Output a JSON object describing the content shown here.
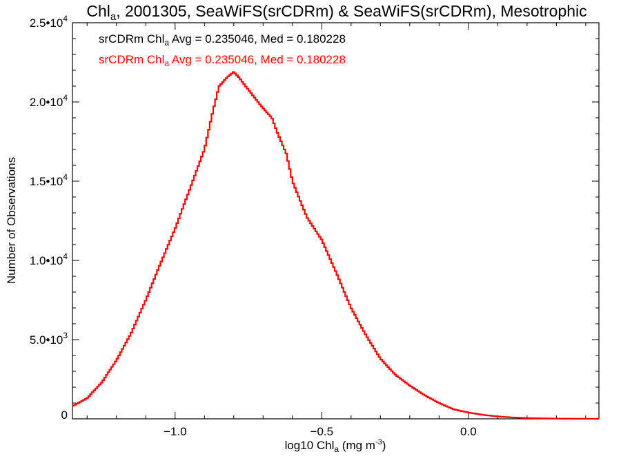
{
  "chart_data": {
    "type": "step",
    "title": {
      "prefix": "Chl",
      "sub": "a",
      "suffix": ", 2001305, SeaWiFS(srCDRm) & SeaWiFS(srCDRm), Mesotrophic"
    },
    "xlabel": {
      "prefix": "log10 Chl",
      "sub": "a",
      "suffix": " (mg m",
      "sup": "-3",
      "end": ")"
    },
    "ylabel": "Number of Observations",
    "xlim": [
      -1.35,
      0.445
    ],
    "ylim": [
      0,
      25000
    ],
    "x_ticks": [
      {
        "value": -1.0,
        "label": "−1.0"
      },
      {
        "value": -0.5,
        "label": "−0.5"
      },
      {
        "value": 0.0,
        "label": "0.0"
      }
    ],
    "y_ticks": [
      {
        "value": 0,
        "mant": "0",
        "exp": ""
      },
      {
        "value": 5000,
        "mant": "5.0•10",
        "exp": "3"
      },
      {
        "value": 10000,
        "mant": "1.0•10",
        "exp": "4"
      },
      {
        "value": 15000,
        "mant": "1.5•10",
        "exp": "4"
      },
      {
        "value": 20000,
        "mant": "2.0•10",
        "exp": "4"
      },
      {
        "value": 25000,
        "mant": "2.5•10",
        "exp": "4"
      }
    ],
    "legend": [
      {
        "prefix": "srCDRm Chl",
        "sub": "a",
        "suffix": " Avg = 0.235046, Med = 0.180228",
        "color": "#000000"
      },
      {
        "prefix": "srCDRm Chl",
        "sub": "a",
        "suffix": " Avg = 0.235046, Med = 0.180228",
        "color": "#ff0000"
      }
    ],
    "legend_position": "top-left",
    "bin_width": 0.006,
    "series": [
      {
        "color": "#000000",
        "x": [
          -1.35,
          -1.3,
          -1.25,
          -1.2,
          -1.15,
          -1.1,
          -1.05,
          -1.0,
          -0.95,
          -0.9,
          -0.87,
          -0.85,
          -0.82,
          -0.8,
          -0.78,
          -0.76,
          -0.73,
          -0.7,
          -0.67,
          -0.65,
          -0.62,
          -0.6,
          -0.55,
          -0.5,
          -0.45,
          -0.4,
          -0.35,
          -0.3,
          -0.25,
          -0.2,
          -0.15,
          -0.1,
          -0.05,
          0.0,
          0.05,
          0.1,
          0.15,
          0.2,
          0.3,
          0.445
        ],
        "y": [
          800,
          1300,
          2300,
          3700,
          5400,
          7500,
          9800,
          12000,
          14500,
          17000,
          19500,
          21000,
          21600,
          21900,
          21500,
          21000,
          20300,
          19600,
          19000,
          18000,
          16700,
          15000,
          12700,
          11300,
          9200,
          7000,
          5300,
          3800,
          2800,
          2100,
          1500,
          1000,
          600,
          400,
          250,
          150,
          90,
          50,
          15,
          0
        ]
      },
      {
        "color": "#ff0000",
        "x": [
          -1.35,
          -1.3,
          -1.25,
          -1.2,
          -1.15,
          -1.1,
          -1.05,
          -1.0,
          -0.95,
          -0.9,
          -0.87,
          -0.85,
          -0.82,
          -0.8,
          -0.78,
          -0.76,
          -0.73,
          -0.7,
          -0.67,
          -0.65,
          -0.62,
          -0.6,
          -0.55,
          -0.5,
          -0.45,
          -0.4,
          -0.35,
          -0.3,
          -0.25,
          -0.2,
          -0.15,
          -0.1,
          -0.05,
          0.0,
          0.05,
          0.1,
          0.15,
          0.2,
          0.3,
          0.445
        ],
        "y": [
          800,
          1300,
          2300,
          3700,
          5400,
          7500,
          9800,
          12000,
          14500,
          17000,
          19500,
          21000,
          21600,
          21900,
          21500,
          21000,
          20300,
          19600,
          19000,
          18000,
          16700,
          15000,
          12700,
          11300,
          9200,
          7000,
          5300,
          3800,
          2800,
          2100,
          1500,
          1000,
          600,
          400,
          250,
          150,
          90,
          50,
          15,
          0
        ]
      }
    ]
  }
}
